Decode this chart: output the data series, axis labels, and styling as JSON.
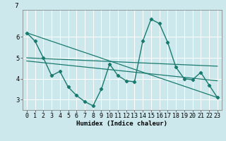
{
  "title": "7",
  "xlabel": "Humidex (Indice chaleur)",
  "bg_color": "#cce8ed",
  "grid_color": "#ffffff",
  "line_color": "#1a7a6e",
  "ylim": [
    2.5,
    7.3
  ],
  "xlim": [
    -0.5,
    23.5
  ],
  "yticks": [
    3,
    4,
    5,
    6
  ],
  "xticks": [
    0,
    1,
    2,
    3,
    4,
    5,
    6,
    7,
    8,
    9,
    10,
    11,
    12,
    13,
    14,
    15,
    16,
    17,
    18,
    19,
    20,
    21,
    22,
    23
  ],
  "line1_x": [
    0,
    1,
    2,
    3,
    4,
    5,
    6,
    7,
    8,
    9,
    10,
    11,
    12,
    13,
    14,
    15,
    16,
    17,
    18,
    19,
    20,
    21,
    22,
    23
  ],
  "line1_y": [
    6.2,
    5.8,
    5.0,
    4.15,
    4.35,
    3.6,
    3.2,
    2.9,
    2.7,
    3.5,
    4.7,
    4.15,
    3.9,
    3.85,
    5.8,
    6.85,
    6.65,
    5.75,
    4.55,
    4.0,
    3.95,
    4.3,
    3.7,
    3.1
  ],
  "trend1_x": [
    0,
    23
  ],
  "trend1_y": [
    6.2,
    3.1
  ],
  "trend2_x": [
    0,
    23
  ],
  "trend2_y": [
    5.0,
    4.6
  ],
  "trend3_x": [
    0,
    23
  ],
  "trend3_y": [
    4.85,
    3.9
  ]
}
